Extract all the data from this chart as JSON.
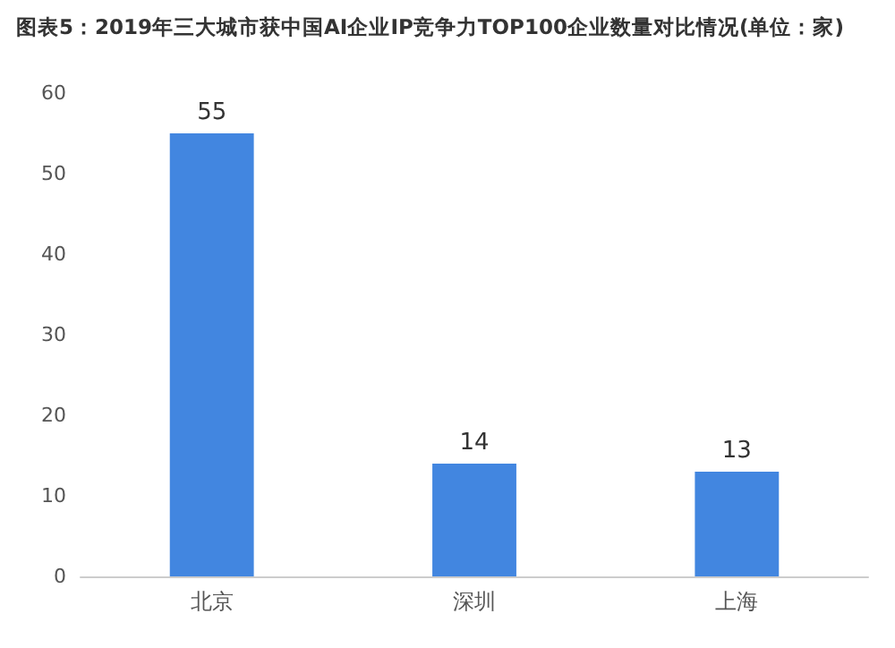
{
  "chart_data": {
    "type": "bar",
    "title": "图表5：2019年三大城市获中国AI企业IP竞争力TOP100企业数量对比情况(单位：家)",
    "categories": [
      "北京",
      "深圳",
      "上海"
    ],
    "values": [
      55,
      14,
      13
    ],
    "color": "#4286e0",
    "ylim": [
      0,
      60
    ],
    "yticks": [
      0,
      10,
      20,
      30,
      40,
      50,
      60
    ],
    "grid": false,
    "data_labels": true
  }
}
